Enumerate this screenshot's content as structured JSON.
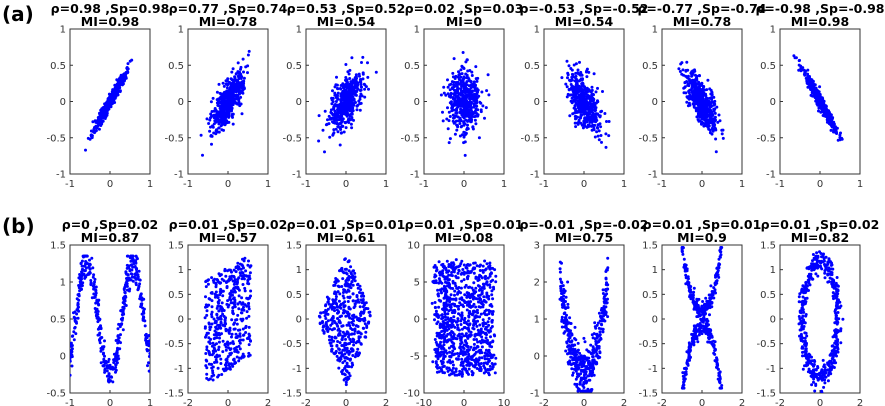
{
  "row_labels": [
    "(a)",
    "(b)"
  ],
  "point_color": "#0000ff",
  "chart_data": [
    {
      "row": 0,
      "type": "scatter",
      "title_line1": "ρ=0.98 ,Sp=0.98",
      "title_line2": "MI=0.98",
      "pattern": "linear",
      "slope": 1,
      "xlim": [
        -1,
        1
      ],
      "ylim": [
        -1,
        1
      ],
      "xticks": [
        "-1",
        "0",
        "1"
      ],
      "yticks": [
        "-1",
        "-0.5",
        "0",
        "0.5",
        "1"
      ],
      "stats": {
        "rho": 0.98,
        "sp": 0.98,
        "mi": 0.98
      }
    },
    {
      "row": 0,
      "type": "scatter",
      "title_line1": "ρ=0.77 ,Sp=0.74",
      "title_line2": "MI=0.78",
      "pattern": "linear",
      "slope": 1,
      "xlim": [
        -1,
        1
      ],
      "ylim": [
        -1,
        1
      ],
      "xticks": [
        "-1",
        "0",
        "1"
      ],
      "yticks": [
        "-1",
        "-0.5",
        "0",
        "0.5",
        "1"
      ],
      "stats": {
        "rho": 0.77,
        "sp": 0.74,
        "mi": 0.78
      }
    },
    {
      "row": 0,
      "type": "scatter",
      "title_line1": "ρ=0.53 ,Sp=0.52",
      "title_line2": "MI=0.54",
      "pattern": "linear",
      "slope": 1,
      "xlim": [
        -1,
        1
      ],
      "ylim": [
        -1,
        1
      ],
      "xticks": [
        "-1",
        "0",
        "1"
      ],
      "yticks": [
        "-1",
        "-0.5",
        "0",
        "0.5",
        "1"
      ],
      "stats": {
        "rho": 0.53,
        "sp": 0.52,
        "mi": 0.54
      }
    },
    {
      "row": 0,
      "type": "scatter",
      "title_line1": "ρ=0.02 ,Sp=0.03",
      "title_line2": "MI=0",
      "pattern": "blob",
      "slope": 0,
      "xlim": [
        -1,
        1
      ],
      "ylim": [
        -1,
        1
      ],
      "xticks": [
        "-1",
        "0",
        "1"
      ],
      "yticks": [
        "-1",
        "-0.5",
        "0",
        "0.5",
        "1"
      ],
      "stats": {
        "rho": 0.02,
        "sp": 0.03,
        "mi": 0
      }
    },
    {
      "row": 0,
      "type": "scatter",
      "title_line1": "ρ=-0.53 ,Sp=-0.52",
      "title_line2": "MI=0.54",
      "pattern": "linear",
      "slope": -1,
      "xlim": [
        -1,
        1
      ],
      "ylim": [
        -1,
        1
      ],
      "xticks": [
        "-1",
        "0",
        "1"
      ],
      "yticks": [
        "-1",
        "-0.5",
        "0",
        "0.5",
        "1"
      ],
      "stats": {
        "rho": -0.53,
        "sp": -0.52,
        "mi": 0.54
      }
    },
    {
      "row": 0,
      "type": "scatter",
      "title_line1": "ρ=-0.77 ,Sp=-0.74",
      "title_line2": "MI=0.78",
      "pattern": "linear",
      "slope": -1,
      "xlim": [
        -1,
        1
      ],
      "ylim": [
        -1,
        1
      ],
      "xticks": [
        "-1",
        "0",
        "1"
      ],
      "yticks": [
        "-1",
        "-0.5",
        "0",
        "0.5",
        "1"
      ],
      "stats": {
        "rho": -0.77,
        "sp": -0.74,
        "mi": 0.78
      }
    },
    {
      "row": 0,
      "type": "scatter",
      "title_line1": "ρ=-0.98 ,Sp=-0.98",
      "title_line2": "MI=0.98",
      "pattern": "linear",
      "slope": -1,
      "xlim": [
        -1,
        1
      ],
      "ylim": [
        -1,
        1
      ],
      "xticks": [
        "-1",
        "0",
        "1"
      ],
      "yticks": [
        "-1",
        "-0.5",
        "0",
        "0.5",
        "1"
      ],
      "stats": {
        "rho": -0.98,
        "sp": -0.98,
        "mi": 0.98
      }
    },
    {
      "row": 1,
      "type": "scatter",
      "title_line1": "ρ=0 ,Sp=0.02",
      "title_line2": "MI=0.87",
      "pattern": "w-shape",
      "xlim": [
        -1,
        1
      ],
      "ylim": [
        -0.5,
        1.5
      ],
      "xticks": [
        "-1",
        "0",
        "1"
      ],
      "yticks": [
        "-0.5",
        "0",
        "0.5",
        "1",
        "1.5"
      ],
      "stats": {
        "rho": 0,
        "sp": 0.02,
        "mi": 0.87
      }
    },
    {
      "row": 1,
      "type": "scatter",
      "title_line1": "ρ=0.01 ,Sp=0.02",
      "title_line2": "MI=0.57",
      "pattern": "parallelogram",
      "xlim": [
        -2,
        2
      ],
      "ylim": [
        -1.5,
        1.5
      ],
      "xticks": [
        "-2",
        "0",
        "2"
      ],
      "yticks": [
        "-1.5",
        "-1",
        "-0.5",
        "0",
        "0.5",
        "1",
        "1.5"
      ],
      "stats": {
        "rho": 0.01,
        "sp": 0.02,
        "mi": 0.57
      }
    },
    {
      "row": 1,
      "type": "scatter",
      "title_line1": "ρ=0.01 ,Sp=0.01",
      "title_line2": "MI=0.61",
      "pattern": "diamond",
      "xlim": [
        -2,
        2
      ],
      "ylim": [
        -1.5,
        1.5
      ],
      "xticks": [
        "-2",
        "0",
        "2"
      ],
      "yticks": [
        "-1.5",
        "-1",
        "-0.5",
        "0",
        "0.5",
        "1",
        "1.5"
      ],
      "stats": {
        "rho": 0.01,
        "sp": 0.01,
        "mi": 0.61
      }
    },
    {
      "row": 1,
      "type": "scatter",
      "title_line1": "ρ=0.01 ,Sp=0.01",
      "title_line2": "MI=0.08",
      "pattern": "square",
      "xlim": [
        -10,
        10
      ],
      "ylim": [
        -10,
        10
      ],
      "xticks": [
        "-10",
        "0",
        "10"
      ],
      "yticks": [
        "-10",
        "-5",
        "0",
        "5",
        "10"
      ],
      "stats": {
        "rho": 0.01,
        "sp": 0.01,
        "mi": 0.08
      }
    },
    {
      "row": 1,
      "type": "scatter",
      "title_line1": "ρ=-0.01 ,Sp=-0.02",
      "title_line2": "MI=0.75",
      "pattern": "parabola",
      "xlim": [
        -2,
        2
      ],
      "ylim": [
        -1,
        3
      ],
      "xticks": [
        "-2",
        "0",
        "2"
      ],
      "yticks": [
        "-1",
        "0",
        "1",
        "2",
        "3"
      ],
      "stats": {
        "rho": -0.01,
        "sp": -0.02,
        "mi": 0.75
      }
    },
    {
      "row": 1,
      "type": "scatter",
      "title_line1": "ρ=0.01 ,Sp=0.01",
      "title_line2": "MI=0.9",
      "pattern": "x-shape",
      "xlim": [
        -2,
        2
      ],
      "ylim": [
        -1.5,
        1.5
      ],
      "xticks": [
        "-2",
        "0",
        "2"
      ],
      "yticks": [
        "-1.5",
        "-1",
        "-0.5",
        "0",
        "0.5",
        "1",
        "1.5"
      ],
      "stats": {
        "rho": 0.01,
        "sp": 0.01,
        "mi": 0.9
      }
    },
    {
      "row": 1,
      "type": "scatter",
      "title_line1": "ρ=0.01 ,Sp=0.02",
      "title_line2": "MI=0.82",
      "pattern": "ring",
      "xlim": [
        -2,
        2
      ],
      "ylim": [
        -1.5,
        1.5
      ],
      "xticks": [
        "-2",
        "0",
        "2"
      ],
      "yticks": [
        "-1.5",
        "-1",
        "-0.5",
        "0",
        "0.5",
        "1",
        "1.5"
      ],
      "stats": {
        "rho": 0.01,
        "sp": 0.02,
        "mi": 0.82
      }
    }
  ]
}
